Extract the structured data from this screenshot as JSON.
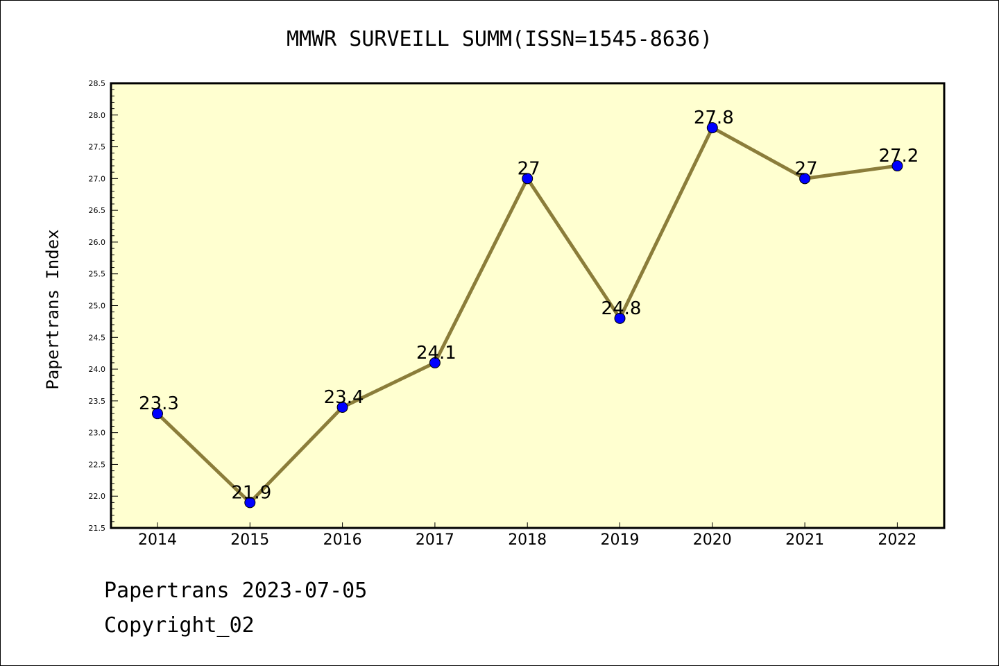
{
  "chart_data": {
    "type": "line",
    "title": "MMWR SURVEILL SUMM(ISSN=1545-8636)",
    "xlabel": "",
    "ylabel": "Papertrans Index",
    "categories": [
      "2014",
      "2015",
      "2016",
      "2017",
      "2018",
      "2019",
      "2020",
      "2021",
      "2022"
    ],
    "series": [
      {
        "values": [
          23.3,
          21.9,
          23.4,
          24.1,
          27,
          24.8,
          27.8,
          27,
          27.2
        ],
        "data_labels": [
          "23.3",
          "21.9",
          "23.4",
          "24.1",
          "27",
          "24.8",
          "27.8",
          "27",
          "27.2"
        ]
      }
    ],
    "ylim": [
      21.5,
      28.5
    ],
    "yticks": [
      "21.5",
      "22.0",
      "22.5",
      "23.0",
      "23.5",
      "24.0",
      "24.5",
      "25.0",
      "25.5",
      "26.0",
      "26.5",
      "27.0",
      "27.5",
      "28.0",
      "28.5"
    ],
    "grid": false,
    "legend": "none",
    "colors": {
      "plot_background": "#ffffd0",
      "line": "#8b7d3a",
      "marker": "#0000ff",
      "marker_edge": "#000000"
    }
  },
  "footer": {
    "line1": "Papertrans 2023-07-05",
    "line2": "Copyright_02"
  }
}
